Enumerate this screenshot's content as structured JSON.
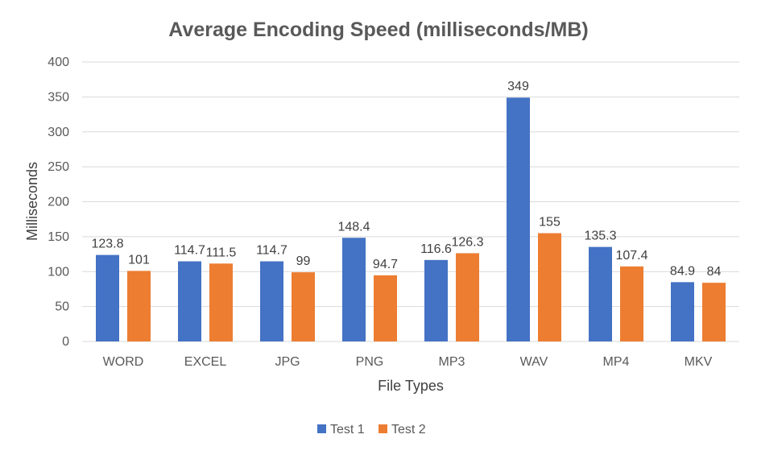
{
  "chart_data": {
    "type": "bar",
    "title": "Average Encoding Speed (milliseconds/MB)",
    "xlabel": "File Types",
    "ylabel": "Milliseconds",
    "categories": [
      "WORD",
      "EXCEL",
      "JPG",
      "PNG",
      "MP3",
      "WAV",
      "MP4",
      "MKV"
    ],
    "series": [
      {
        "name": "Test 1",
        "color": "#4472C4",
        "values": [
          123.8,
          114.7,
          114.7,
          148.4,
          116.6,
          349,
          135.3,
          84.9
        ]
      },
      {
        "name": "Test 2",
        "color": "#ED7D31",
        "values": [
          101,
          111.5,
          99,
          94.7,
          126.3,
          155,
          107.4,
          84
        ]
      }
    ],
    "ylim": [
      0,
      400
    ],
    "yticks": [
      0,
      50,
      100,
      150,
      200,
      250,
      300,
      350,
      400
    ],
    "grid": true,
    "legend": "bottom-center"
  }
}
